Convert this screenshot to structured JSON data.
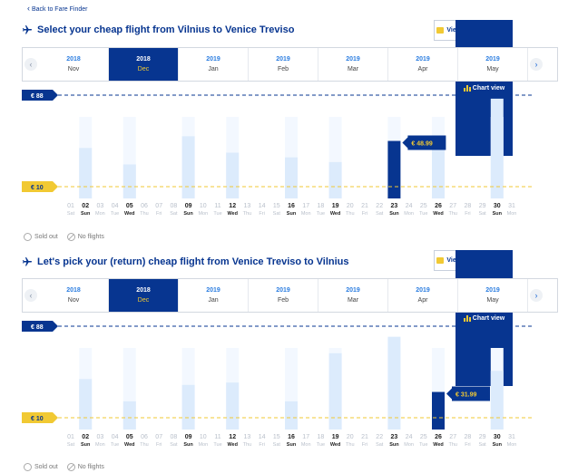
{
  "back_link": "Back to Fare Finder",
  "sections": [
    {
      "title": "Select your cheap flight from Vilnius to Venice Treviso",
      "chart_view": "Chart view",
      "month_view": "View by month",
      "months": [
        {
          "year": "2018",
          "month": "Nov",
          "selected": false
        },
        {
          "year": "2018",
          "month": "Dec",
          "selected": true
        },
        {
          "year": "2019",
          "month": "Jan",
          "selected": false
        },
        {
          "year": "2019",
          "month": "Feb",
          "selected": false
        },
        {
          "year": "2019",
          "month": "Mar",
          "selected": false
        },
        {
          "year": "2019",
          "month": "Apr",
          "selected": false
        },
        {
          "year": "2019",
          "month": "May",
          "selected": false
        }
      ],
      "max_label": "€ 88",
      "min_label": "€ 10",
      "price_tooltip": "€ 48.99",
      "legend": {
        "sold_out": "Sold out",
        "no_flights": "No flights"
      }
    },
    {
      "title": "Let's pick your (return) cheap flight from Venice Treviso to Vilnius",
      "chart_view": "Chart view",
      "month_view": "View by month",
      "months": [
        {
          "year": "2018",
          "month": "Nov",
          "selected": false
        },
        {
          "year": "2018",
          "month": "Dec",
          "selected": true
        },
        {
          "year": "2019",
          "month": "Jan",
          "selected": false
        },
        {
          "year": "2019",
          "month": "Feb",
          "selected": false
        },
        {
          "year": "2019",
          "month": "Mar",
          "selected": false
        },
        {
          "year": "2019",
          "month": "Apr",
          "selected": false
        },
        {
          "year": "2019",
          "month": "May",
          "selected": false
        }
      ],
      "max_label": "€ 88",
      "min_label": "€ 10",
      "price_tooltip": "€ 31.99",
      "legend": {
        "sold_out": "Sold out",
        "no_flights": "No flights"
      }
    }
  ],
  "chart_data": [
    {
      "type": "bar",
      "days": [
        "01",
        "02",
        "03",
        "04",
        "05",
        "06",
        "07",
        "08",
        "09",
        "10",
        "11",
        "12",
        "13",
        "14",
        "15",
        "16",
        "17",
        "18",
        "19",
        "20",
        "21",
        "22",
        "23",
        "24",
        "25",
        "26",
        "27",
        "28",
        "29",
        "30",
        "31"
      ],
      "weekdays": [
        "Sat",
        "Sun",
        "Mon",
        "Tue",
        "Wed",
        "Thu",
        "Fri",
        "Sat",
        "Sun",
        "Mon",
        "Tue",
        "Wed",
        "Thu",
        "Fri",
        "Sat",
        "Sun",
        "Mon",
        "Tue",
        "Wed",
        "Thu",
        "Fri",
        "Sat",
        "Sun",
        "Mon",
        "Tue",
        "Wed",
        "Thu",
        "Fri",
        "Sat",
        "Sun",
        "Mon"
      ],
      "available_days": [
        "02",
        "05",
        "09",
        "12",
        "16",
        "19",
        "23",
        "26",
        "30"
      ],
      "values": [
        null,
        43,
        null,
        null,
        29,
        null,
        null,
        null,
        53,
        null,
        null,
        39,
        null,
        null,
        null,
        35,
        null,
        null,
        31,
        null,
        null,
        null,
        48.99,
        null,
        null,
        53,
        null,
        null,
        null,
        85,
        null
      ],
      "selected_day": "23",
      "ylim": [
        0,
        88
      ]
    },
    {
      "type": "bar",
      "days": [
        "01",
        "02",
        "03",
        "04",
        "05",
        "06",
        "07",
        "08",
        "09",
        "10",
        "11",
        "12",
        "13",
        "14",
        "15",
        "16",
        "17",
        "18",
        "19",
        "20",
        "21",
        "22",
        "23",
        "24",
        "25",
        "26",
        "27",
        "28",
        "29",
        "30",
        "31"
      ],
      "weekdays": [
        "Sat",
        "Sun",
        "Mon",
        "Tue",
        "Wed",
        "Thu",
        "Fri",
        "Sat",
        "Sun",
        "Mon",
        "Tue",
        "Wed",
        "Thu",
        "Fri",
        "Sat",
        "Sun",
        "Mon",
        "Tue",
        "Wed",
        "Thu",
        "Fri",
        "Sat",
        "Sun",
        "Mon",
        "Tue",
        "Wed",
        "Thu",
        "Fri",
        "Sat",
        "Sun",
        "Mon"
      ],
      "available_days": [
        "02",
        "05",
        "09",
        "12",
        "16",
        "19",
        "23",
        "26",
        "30"
      ],
      "values": [
        null,
        43,
        null,
        null,
        24,
        null,
        null,
        null,
        38,
        null,
        null,
        40,
        null,
        null,
        null,
        24,
        null,
        null,
        65,
        null,
        null,
        null,
        79,
        null,
        null,
        31.99,
        null,
        null,
        null,
        50,
        null
      ],
      "selected_day": "26",
      "ylim": [
        0,
        88
      ]
    }
  ],
  "colors": {
    "navy": "#073590",
    "light_bar": "#dcebfc",
    "yellow": "#f1c933",
    "day_blue": "#1f6bd8"
  }
}
